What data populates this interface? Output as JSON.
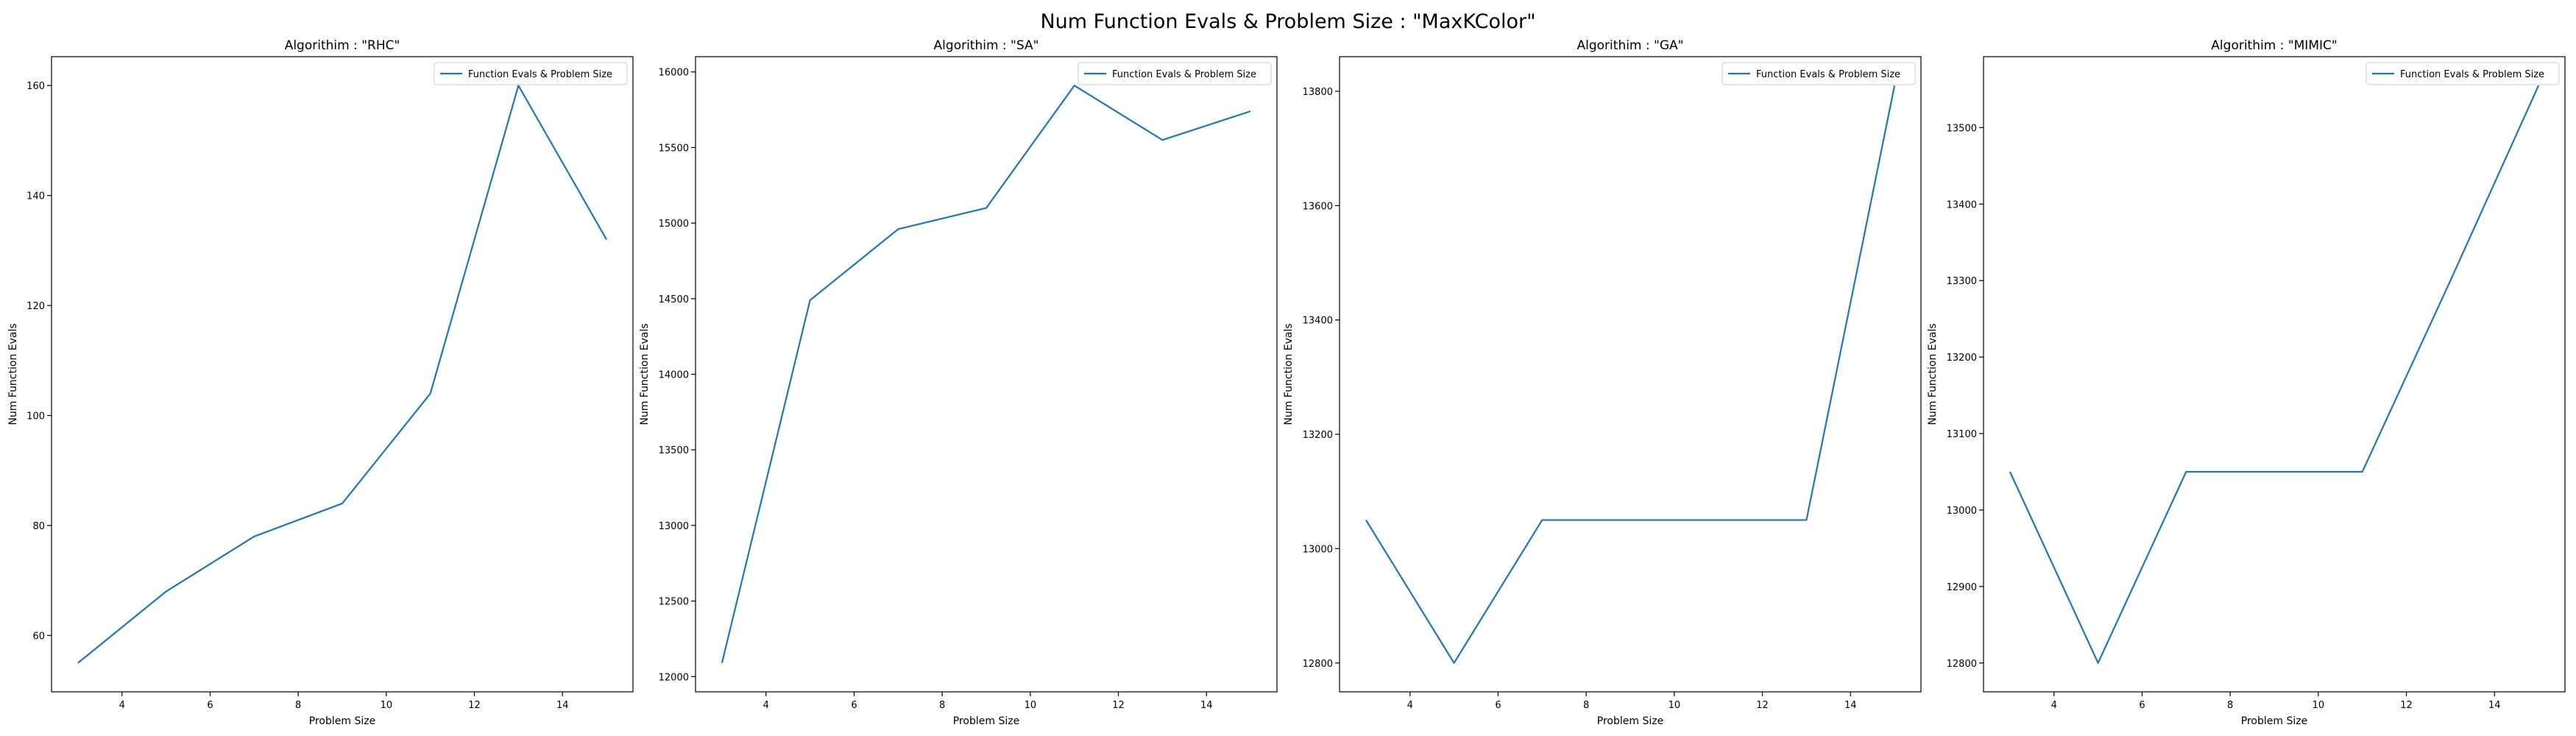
{
  "suptitle": "Num Function Evals & Problem Size : \"MaxKColor\"",
  "colors": {
    "line": "#1f77b4",
    "axes": "#000000",
    "background": "#ffffff"
  },
  "chart_data": [
    {
      "type": "line",
      "title": "Algorithim : \"RHC\"",
      "xlabel": "Problem Size",
      "ylabel": "Num Function Evals",
      "x": [
        3,
        5,
        7,
        9,
        11,
        13,
        15
      ],
      "series": [
        {
          "name": "Function Evals & Problem Size",
          "values": [
            55,
            68,
            78,
            84,
            104,
            160,
            132
          ]
        }
      ],
      "xlim": [
        2.4,
        15.6
      ],
      "ylim": [
        49.75,
        165.25
      ],
      "xticks": [
        4,
        6,
        8,
        10,
        12,
        14
      ],
      "yticks": [
        60,
        80,
        100,
        120,
        140,
        160
      ],
      "legend": "upper-right",
      "grid": false
    },
    {
      "type": "line",
      "title": "Algorithim : \"SA\"",
      "xlabel": "Problem Size",
      "ylabel": "Num Function Evals",
      "x": [
        3,
        5,
        7,
        9,
        11,
        13,
        15
      ],
      "series": [
        {
          "name": "Function Evals & Problem Size",
          "values": [
            12090,
            14490,
            14960,
            15100,
            15910,
            15550,
            15740
          ]
        }
      ],
      "xlim": [
        2.4,
        15.6
      ],
      "ylim": [
        11899,
        16101
      ],
      "xticks": [
        4,
        6,
        8,
        10,
        12,
        14
      ],
      "yticks": [
        12000,
        12500,
        13000,
        13500,
        14000,
        14500,
        15000,
        15500,
        16000
      ],
      "legend": "upper-right",
      "grid": false
    },
    {
      "type": "line",
      "title": "Algorithim : \"GA\"",
      "xlabel": "Problem Size",
      "ylabel": "Num Function Evals",
      "x": [
        3,
        5,
        7,
        9,
        11,
        13,
        15
      ],
      "series": [
        {
          "name": "Function Evals & Problem Size",
          "values": [
            13050,
            12800,
            13050,
            13050,
            13050,
            13050,
            13810
          ]
        }
      ],
      "xlim": [
        2.4,
        15.6
      ],
      "ylim": [
        12749.5,
        13860.5
      ],
      "xticks": [
        4,
        6,
        8,
        10,
        12,
        14
      ],
      "yticks": [
        12800,
        13000,
        13200,
        13400,
        13600,
        13800
      ],
      "legend": "upper-right",
      "grid": false
    },
    {
      "type": "line",
      "title": "Algorithim : \"MIMIC\"",
      "xlabel": "Problem Size",
      "ylabel": "Num Function Evals",
      "x": [
        3,
        5,
        7,
        9,
        11,
        13,
        15
      ],
      "series": [
        {
          "name": "Function Evals & Problem Size",
          "values": [
            13050,
            12800,
            13050,
            13050,
            13050,
            13300,
            13555
          ]
        }
      ],
      "xlim": [
        2.4,
        15.6
      ],
      "ylim": [
        12762.25,
        13592.75
      ],
      "xticks": [
        4,
        6,
        8,
        10,
        12,
        14
      ],
      "yticks": [
        12800,
        12900,
        13000,
        13100,
        13200,
        13300,
        13400,
        13500
      ],
      "legend": "upper-right",
      "grid": false
    }
  ]
}
